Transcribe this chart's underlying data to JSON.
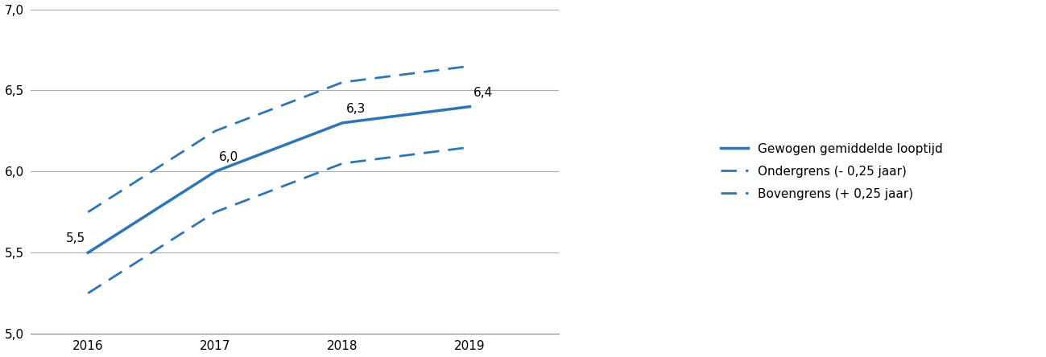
{
  "years": [
    2016,
    2017,
    2018,
    2019
  ],
  "main_line": [
    5.5,
    6.0,
    6.3,
    6.4
  ],
  "lower_line": [
    5.25,
    5.75,
    6.05,
    6.15
  ],
  "upper_line": [
    5.75,
    6.25,
    6.55,
    6.65
  ],
  "main_labels": [
    "5,5",
    "6,0",
    "6,3",
    "6,4"
  ],
  "line_color": "#2E75B6",
  "ylim": [
    5.0,
    7.0
  ],
  "yticks": [
    5.0,
    5.5,
    6.0,
    6.5,
    7.0
  ],
  "ytick_labels": [
    "5,0",
    "5,5",
    "6,0",
    "6,5",
    "7,0"
  ],
  "xlim": [
    2015.55,
    2019.7
  ],
  "legend_main": "Gewogen gemiddelde looptijd",
  "legend_lower": "Ondergrens (- 0,25 jaar)",
  "legend_upper": "Bovengrens (+ 0,25 jaar)",
  "grid_color": "#AAAAAA",
  "background_color": "#FFFFFF",
  "linewidth_main": 2.5,
  "linewidth_dashed": 2.0,
  "dash_pattern": [
    7,
    4
  ],
  "annotation_fontsize": 11
}
